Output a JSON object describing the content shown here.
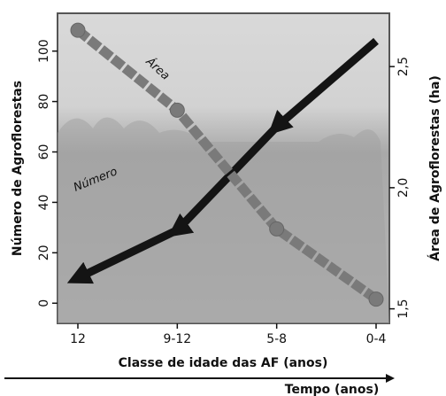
{
  "chart_data": {
    "type": "line",
    "x_label": "Classe de idade das AF (anos)",
    "y_label": "Número de Agroflorestas",
    "y2_label": "Área de Agroflorestas (ha)",
    "time_label": "Tempo (anos)",
    "categories": [
      "12",
      "9-12",
      "5-8",
      "0-4"
    ],
    "series": [
      {
        "name": "Número",
        "color": "#141414",
        "values": [
          10,
          29,
          70,
          104
        ]
      },
      {
        "name": "Área",
        "color": "#7a7a7a",
        "axis": "y2",
        "values": [
          2.65,
          2.32,
          1.83,
          1.54
        ]
      }
    ],
    "ylim": [
      -8,
      115
    ],
    "yticks": [
      0,
      20,
      40,
      60,
      80,
      100
    ],
    "y2lim": [
      1.44,
      2.72
    ],
    "y2ticks": [
      {
        "value": 1.5,
        "label": "1,5"
      },
      {
        "value": 2.0,
        "label": "2,0"
      },
      {
        "value": 2.5,
        "label": "2,5"
      }
    ]
  }
}
